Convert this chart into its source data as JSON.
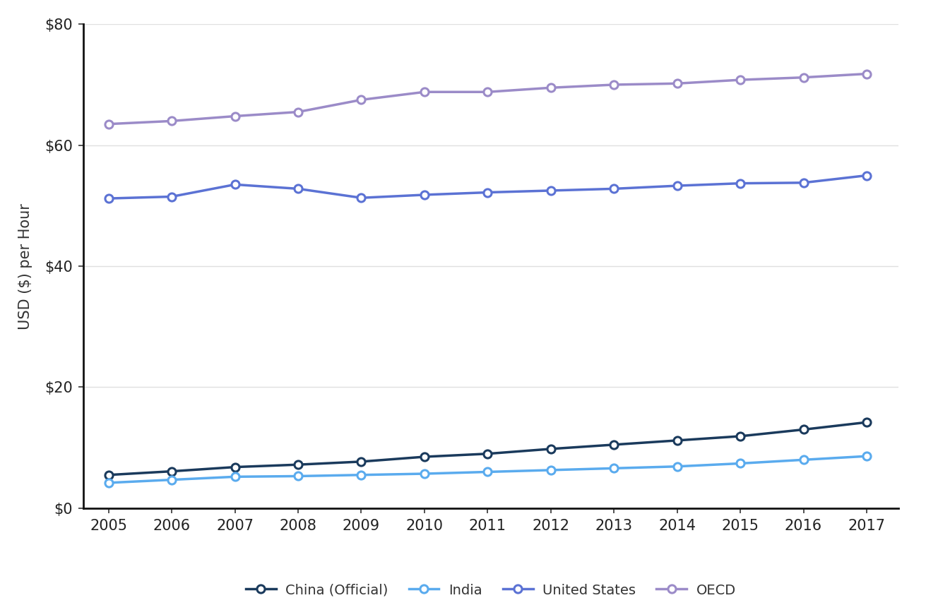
{
  "years": [
    2005,
    2006,
    2007,
    2008,
    2009,
    2010,
    2011,
    2012,
    2013,
    2014,
    2015,
    2016,
    2017
  ],
  "china": [
    5.5,
    6.1,
    6.8,
    7.2,
    7.7,
    8.5,
    9.0,
    9.8,
    10.5,
    11.2,
    11.9,
    13.0,
    14.2
  ],
  "india": [
    4.2,
    4.7,
    5.2,
    5.3,
    5.5,
    5.7,
    6.0,
    6.3,
    6.6,
    6.9,
    7.4,
    8.0,
    8.6
  ],
  "us": [
    51.2,
    51.5,
    53.5,
    52.8,
    51.3,
    51.8,
    52.2,
    52.5,
    52.8,
    53.3,
    53.7,
    53.8,
    55.0
  ],
  "oecd": [
    63.5,
    64.0,
    64.8,
    65.5,
    67.5,
    68.8,
    68.8,
    69.5,
    70.0,
    70.2,
    70.8,
    71.2,
    71.8
  ],
  "china_color": "#1a3a5c",
  "india_color": "#5aabee",
  "us_color": "#5b72d4",
  "oecd_color": "#9b8bc8",
  "ylabel": "USD ($) per Hour",
  "ylim": [
    0,
    80
  ],
  "yticks": [
    0,
    20,
    40,
    60,
    80
  ],
  "ytick_labels": [
    "$0",
    "$20",
    "$40",
    "$60",
    "$80"
  ],
  "background_color": "#ffffff",
  "grid_color": "#e0e0e0",
  "legend_labels": [
    "China (Official)",
    "India",
    "United States",
    "OECD"
  ]
}
